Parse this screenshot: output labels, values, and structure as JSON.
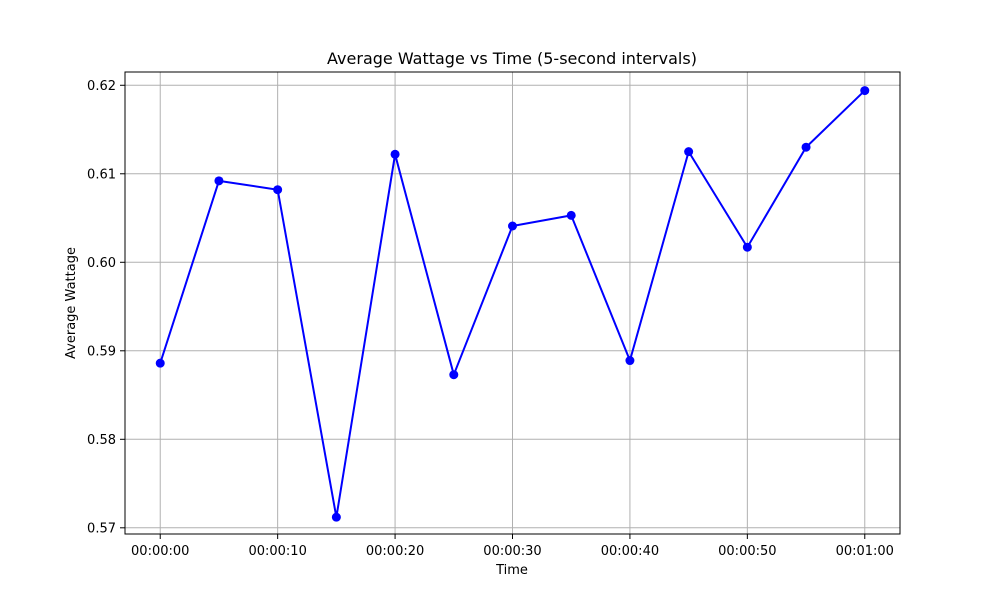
{
  "chart_data": {
    "type": "line",
    "title": "Average Wattage vs Time (5-second intervals)",
    "xlabel": "Time",
    "ylabel": "Average Wattage",
    "x": [
      "00:00:00",
      "00:00:05",
      "00:00:10",
      "00:00:15",
      "00:00:20",
      "00:00:25",
      "00:00:30",
      "00:00:35",
      "00:00:40",
      "00:00:45",
      "00:00:50",
      "00:00:55",
      "00:01:00"
    ],
    "series": [
      {
        "values": [
          0.5886,
          0.6092,
          0.6082,
          0.5712,
          0.6122,
          0.5873,
          0.6041,
          0.6053,
          0.5889,
          0.6125,
          0.6017,
          0.613,
          0.6194
        ],
        "color": "#0000ff",
        "marker": "circle"
      }
    ],
    "x_ticks": [
      "00:00:00",
      "00:00:10",
      "00:00:20",
      "00:00:30",
      "00:00:40",
      "00:00:50",
      "00:01:00"
    ],
    "y_ticks": [
      0.57,
      0.58,
      0.59,
      0.6,
      0.61,
      0.62
    ],
    "y_tick_labels": [
      "0.57",
      "0.58",
      "0.59",
      "0.60",
      "0.61",
      "0.62"
    ],
    "xlim": [
      "-00:00:03",
      "00:01:03"
    ],
    "ylim": [
      0.5693,
      0.6215
    ],
    "grid": true,
    "legend": "none"
  }
}
